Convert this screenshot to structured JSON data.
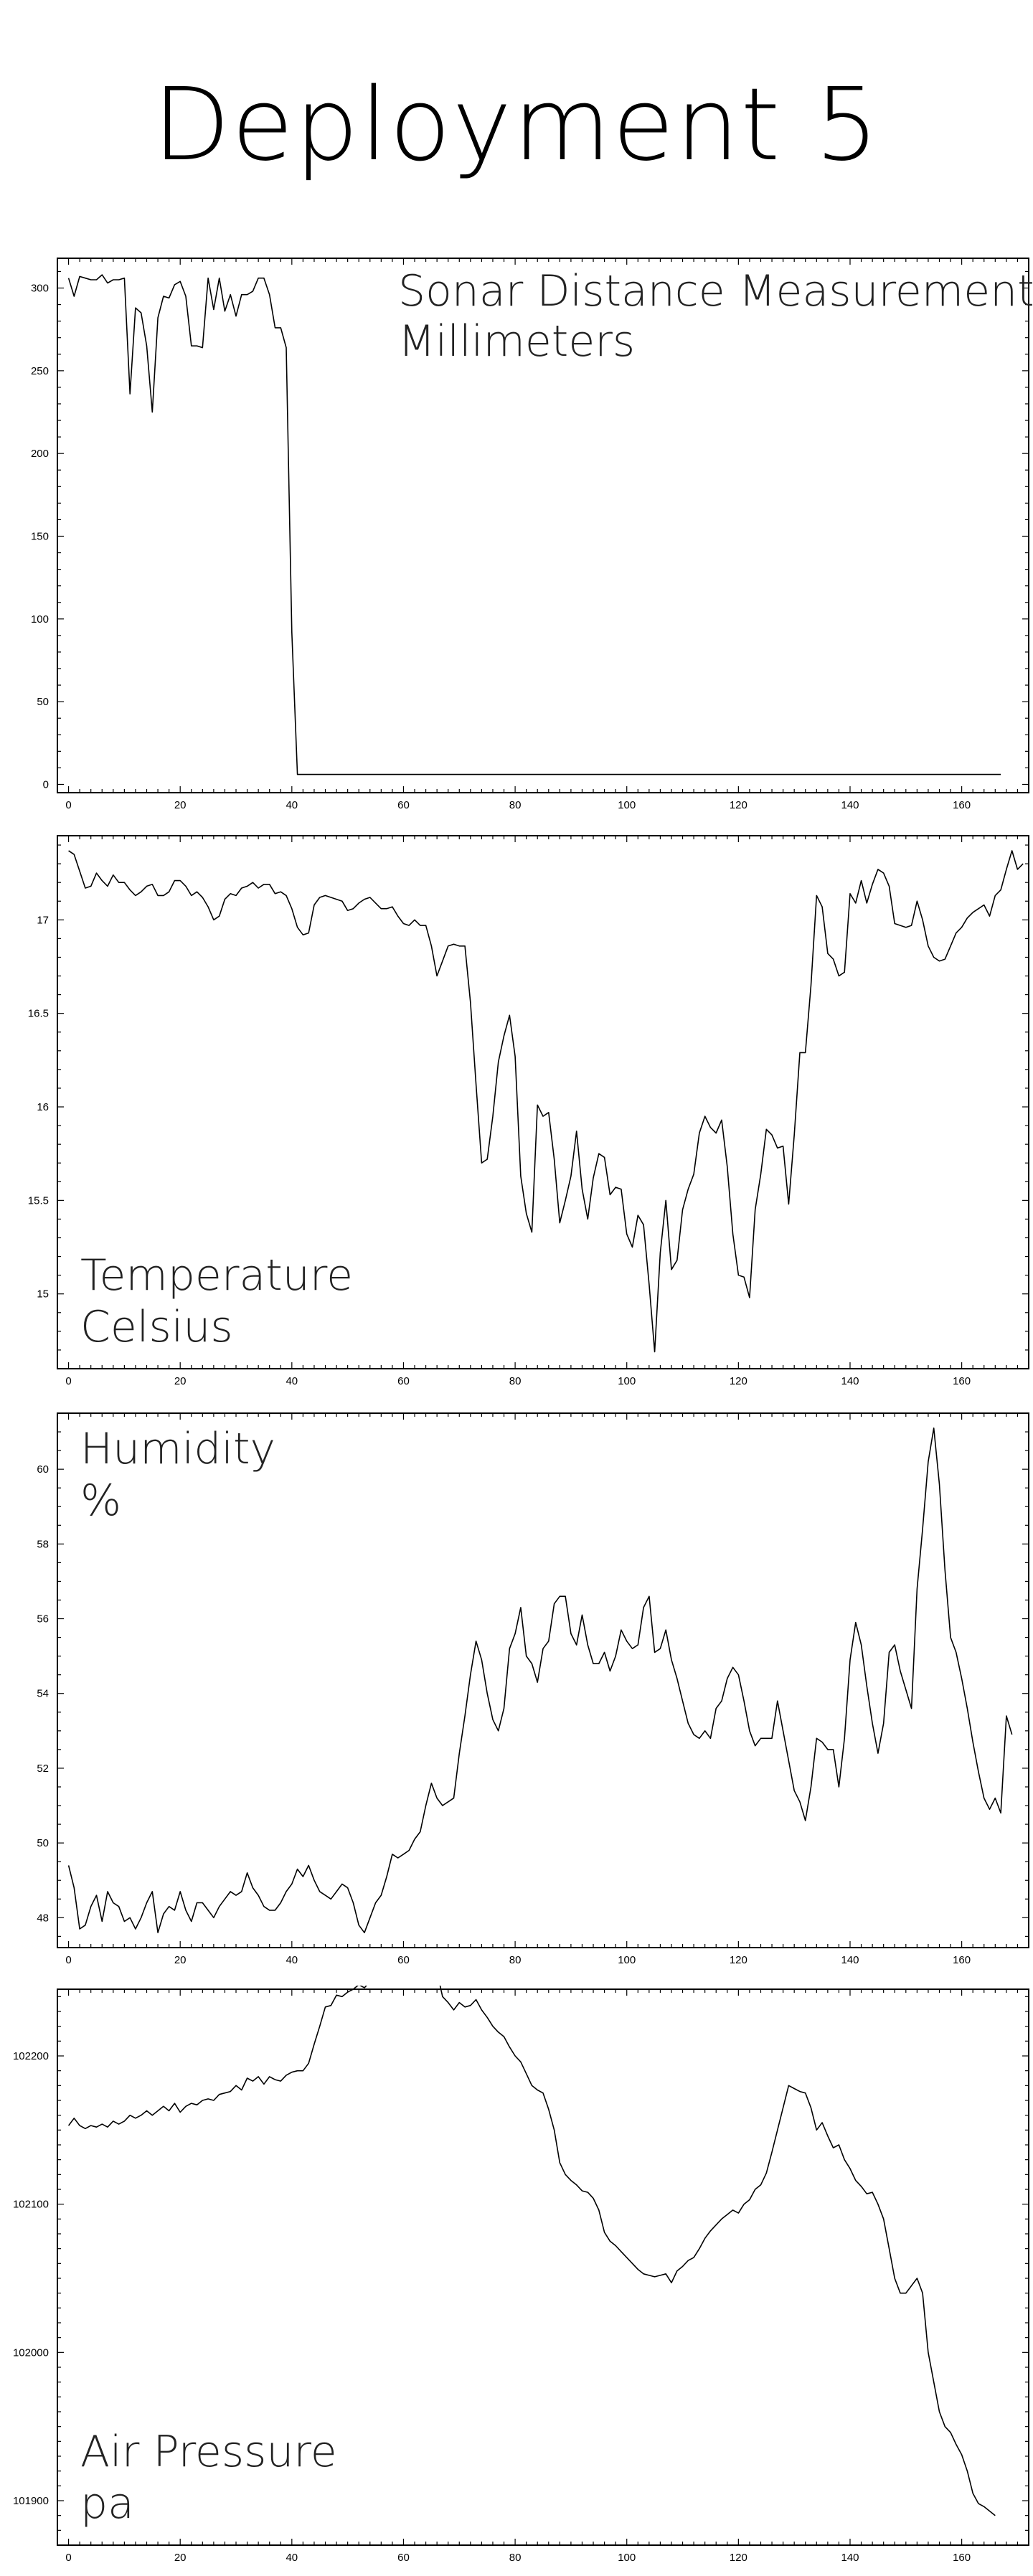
{
  "page_title": "Deployment 5",
  "chart_data": [
    {
      "type": "line",
      "title": "Sonar Distance Measurements",
      "subtitle": "Millimeters",
      "title_position": "top-right",
      "xlim": [
        -2,
        172
      ],
      "ylim": [
        -5,
        318
      ],
      "xticks": [
        0,
        20,
        40,
        60,
        80,
        100,
        120,
        140,
        160
      ],
      "yticks": [
        0,
        50,
        100,
        150,
        200,
        250,
        300
      ],
      "ytick_labels": [
        "0",
        "50",
        "100",
        "150",
        "200",
        "250",
        "300"
      ],
      "x_minor_step": 2,
      "y_minor_step": 10,
      "grid": false,
      "series": [
        {
          "x_start": 0,
          "x_step": 1,
          "values": [
            306,
            295,
            307,
            306,
            305,
            305,
            308,
            303,
            305,
            305,
            306,
            236,
            288,
            285,
            265,
            225,
            282,
            295,
            294,
            302,
            304,
            295,
            265,
            265,
            264,
            306,
            287,
            306,
            286,
            296,
            283,
            296,
            296,
            298,
            306,
            306,
            296,
            276,
            276,
            264,
            92,
            6,
            6,
            6,
            6,
            6,
            6,
            6,
            6,
            6,
            6,
            6,
            6,
            6,
            6,
            6,
            6,
            6,
            6,
            6,
            6,
            6,
            6,
            6,
            6,
            6,
            6,
            6,
            6,
            6,
            6,
            6,
            6,
            6,
            6,
            6,
            6,
            6,
            6,
            6,
            6,
            6,
            6,
            6,
            6,
            6,
            6,
            6,
            6,
            6,
            6,
            6,
            6,
            6,
            6,
            6,
            6,
            6,
            6,
            6,
            6,
            6,
            6,
            6,
            6,
            6,
            6,
            6,
            6,
            6,
            6,
            6,
            6,
            6,
            6,
            6,
            6,
            6,
            6,
            6,
            6,
            6,
            6,
            6,
            6,
            6,
            6,
            6,
            6,
            6,
            6,
            6,
            6,
            6,
            6,
            6,
            6,
            6,
            6,
            6,
            6,
            6,
            6,
            6,
            6,
            6,
            6,
            6,
            6,
            6,
            6,
            6,
            6,
            6,
            6,
            6,
            6,
            6,
            6,
            6,
            6,
            6,
            6,
            6,
            6,
            6,
            6,
            6
          ]
        }
      ]
    },
    {
      "type": "line",
      "title": "Temperature",
      "subtitle": "Celsius",
      "title_position": "bottom-left",
      "xlim": [
        -2,
        172
      ],
      "ylim": [
        14.6,
        17.45
      ],
      "xticks": [
        0,
        20,
        40,
        60,
        80,
        100,
        120,
        140,
        160
      ],
      "yticks": [
        15,
        15.5,
        16,
        16.5,
        17
      ],
      "ytick_labels": [
        "15",
        "15.5",
        "16",
        "16.5",
        "17"
      ],
      "x_minor_step": 2,
      "y_minor_step": 0.1,
      "grid": false,
      "series": [
        {
          "x_start": 0,
          "x_step": 1,
          "values": [
            17.37,
            17.35,
            17.26,
            17.17,
            17.18,
            17.25,
            17.21,
            17.18,
            17.24,
            17.2,
            17.2,
            17.16,
            17.13,
            17.15,
            17.18,
            17.19,
            17.13,
            17.13,
            17.15,
            17.21,
            17.21,
            17.18,
            17.13,
            17.15,
            17.12,
            17.07,
            17.0,
            17.02,
            17.11,
            17.14,
            17.13,
            17.17,
            17.18,
            17.2,
            17.17,
            17.19,
            17.19,
            17.14,
            17.15,
            17.13,
            17.06,
            16.96,
            16.92,
            16.93,
            17.08,
            17.12,
            17.13,
            17.12,
            17.11,
            17.1,
            17.05,
            17.06,
            17.09,
            17.11,
            17.12,
            17.09,
            17.06,
            17.06,
            17.07,
            17.02,
            16.98,
            16.97,
            17.0,
            16.97,
            16.97,
            16.86,
            16.7,
            16.78,
            16.86,
            16.87,
            16.86,
            16.86,
            16.56,
            16.12,
            15.7,
            15.72,
            15.95,
            16.24,
            16.38,
            16.49,
            16.27,
            15.63,
            15.43,
            15.33,
            16.01,
            15.95,
            15.97,
            15.72,
            15.38,
            15.5,
            15.63,
            15.87,
            15.56,
            15.4,
            15.62,
            15.75,
            15.73,
            15.53,
            15.57,
            15.56,
            15.32,
            15.25,
            15.42,
            15.37,
            15.05,
            14.69,
            15.22,
            15.5,
            15.13,
            15.18,
            15.45,
            15.56,
            15.64,
            15.86,
            15.95,
            15.89,
            15.86,
            15.93,
            15.68,
            15.32,
            15.1,
            15.09,
            14.98,
            15.45,
            15.64,
            15.88,
            15.85,
            15.78,
            15.79,
            15.48,
            15.85,
            16.29,
            16.29,
            16.65,
            17.13,
            17.07,
            16.82,
            16.79,
            16.7,
            16.72,
            17.14,
            17.09,
            17.21,
            17.09,
            17.19,
            17.27,
            17.25,
            17.18,
            16.98,
            16.97,
            16.96,
            16.97,
            17.1,
            17.0,
            16.86,
            16.8,
            16.78,
            16.79,
            16.86,
            16.93,
            16.96,
            17.01,
            17.04,
            17.06,
            17.08,
            17.02,
            17.13,
            17.16,
            17.27,
            17.37,
            17.27,
            17.3
          ]
        }
      ]
    },
    {
      "type": "line",
      "title": "Humidity",
      "subtitle": "%",
      "title_position": "top-left",
      "xlim": [
        -2,
        172
      ],
      "ylim": [
        47.2,
        61.5
      ],
      "xticks": [
        0,
        20,
        40,
        60,
        80,
        100,
        120,
        140,
        160
      ],
      "yticks": [
        48,
        50,
        52,
        54,
        56,
        58,
        60
      ],
      "ytick_labels": [
        "48",
        "50",
        "52",
        "54",
        "56",
        "58",
        "60"
      ],
      "x_minor_step": 2,
      "y_minor_step": 0.5,
      "grid": false,
      "series": [
        {
          "x_start": 0,
          "x_step": 1,
          "values": [
            49.4,
            48.8,
            47.7,
            47.8,
            48.3,
            48.6,
            47.9,
            48.7,
            48.4,
            48.3,
            47.9,
            48.0,
            47.7,
            48.0,
            48.4,
            48.7,
            47.6,
            48.1,
            48.3,
            48.2,
            48.7,
            48.2,
            47.9,
            48.4,
            48.4,
            48.2,
            48.0,
            48.3,
            48.5,
            48.7,
            48.6,
            48.7,
            49.2,
            48.8,
            48.6,
            48.3,
            48.2,
            48.2,
            48.4,
            48.7,
            48.9,
            49.3,
            49.1,
            49.4,
            49.0,
            48.7,
            48.6,
            48.5,
            48.7,
            48.9,
            48.8,
            48.4,
            47.8,
            47.6,
            48.0,
            48.4,
            48.6,
            49.1,
            49.7,
            49.6,
            49.7,
            49.8,
            50.1,
            50.3,
            51.0,
            51.6,
            51.2,
            51.0,
            51.1,
            51.2,
            52.4,
            53.4,
            54.5,
            55.4,
            54.9,
            54.0,
            53.3,
            53.0,
            53.6,
            55.2,
            55.6,
            56.3,
            55.0,
            54.8,
            54.3,
            55.2,
            55.4,
            56.4,
            56.6,
            56.6,
            55.6,
            55.3,
            56.1,
            55.3,
            54.8,
            54.8,
            55.1,
            54.6,
            55.0,
            55.7,
            55.4,
            55.2,
            55.3,
            56.3,
            56.6,
            55.1,
            55.2,
            55.7,
            54.9,
            54.4,
            53.8,
            53.2,
            52.9,
            52.8,
            53.0,
            52.8,
            53.6,
            53.8,
            54.4,
            54.7,
            54.5,
            53.8,
            53.0,
            52.6,
            52.8,
            52.8,
            52.8,
            53.8,
            53.0,
            52.2,
            51.4,
            51.1,
            50.6,
            51.5,
            52.8,
            52.7,
            52.5,
            52.5,
            51.5,
            52.8,
            54.9,
            55.9,
            55.3,
            54.2,
            53.2,
            52.4,
            53.2,
            55.1,
            55.3,
            54.6,
            54.1,
            53.6,
            56.8,
            58.4,
            60.2,
            61.1,
            59.6,
            57.3,
            55.5,
            55.1,
            54.4,
            53.6,
            52.7,
            51.9,
            51.2,
            50.9,
            51.2,
            50.8,
            53.4,
            52.9
          ]
        }
      ]
    },
    {
      "type": "line",
      "title": "Air Pressure",
      "subtitle": "pa",
      "title_position": "bottom-left",
      "xlim": [
        -2,
        172
      ],
      "ylim": [
        101870,
        102245
      ],
      "xticks": [
        0,
        20,
        40,
        60,
        80,
        100,
        120,
        140,
        160
      ],
      "yticks": [
        101900,
        102000,
        102100,
        102200
      ],
      "ytick_labels": [
        "101900",
        "102000",
        "102100",
        "102200"
      ],
      "x_minor_step": 2,
      "y_minor_step": 10,
      "grid": false,
      "series": [
        {
          "x_start": 0,
          "x_step": 1,
          "values": [
            102153,
            102158,
            102153,
            102151,
            102153,
            102152,
            102154,
            102152,
            102156,
            102154,
            102156,
            102160,
            102158,
            102160,
            102163,
            102160,
            102163,
            102166,
            102163,
            102168,
            102162,
            102166,
            102168,
            102167,
            102170,
            102171,
            102170,
            102174,
            102175,
            102176,
            102180,
            102177,
            102185,
            102183,
            102186,
            102181,
            102186,
            102184,
            102183,
            102187,
            102189,
            102190,
            102190,
            102195,
            102208,
            102220,
            102233,
            102234,
            102241,
            102240,
            102243,
            102245,
            102248,
            102246,
            102250,
            102251,
            102255,
            102260,
            102258,
            102263,
            102262,
            102268,
            102269,
            102268,
            102266,
            102262,
            102257,
            102240,
            102236,
            102231,
            102236,
            102233,
            102234,
            102238,
            102231,
            102226,
            102220,
            102216,
            102213,
            102206,
            102200,
            102196,
            102188,
            102180,
            102177,
            102175,
            102164,
            102150,
            102128,
            102120,
            102116,
            102113,
            102109,
            102108,
            102104,
            102096,
            102081,
            102075,
            102072,
            102068,
            102064,
            102060,
            102056,
            102053,
            102052,
            102051,
            102052,
            102053,
            102047,
            102055,
            102058,
            102062,
            102064,
            102070,
            102077,
            102082,
            102086,
            102090,
            102093,
            102096,
            102094,
            102100,
            102103,
            102110,
            102113,
            102121,
            102135,
            102150,
            102165,
            102180,
            102178,
            102176,
            102175,
            102165,
            102150,
            102155,
            102146,
            102138,
            102140,
            102130,
            102124,
            102116,
            102112,
            102107,
            102108,
            102100,
            102090,
            102070,
            102050,
            102040,
            102040,
            102045,
            102050,
            102040,
            102000,
            101980,
            101960,
            101950,
            101946,
            101938,
            101931,
            101920,
            101905,
            101898,
            101896,
            101893,
            101890
          ]
        }
      ]
    }
  ]
}
